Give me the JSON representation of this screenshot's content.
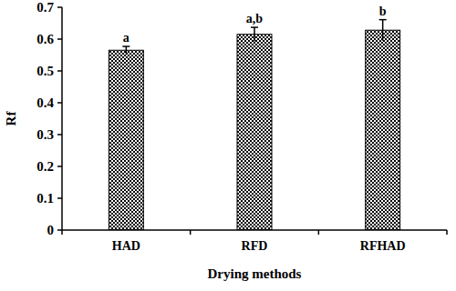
{
  "chart_data": {
    "type": "bar",
    "x_label": "Drying methods",
    "y_label": "Rf",
    "categories": [
      "HAD",
      "RFD",
      "RFHAD"
    ],
    "values": [
      0.565,
      0.615,
      0.628
    ],
    "errors": [
      0.012,
      0.022,
      0.033
    ],
    "annotations": [
      "a",
      "a,b",
      "b"
    ],
    "color": "#000000",
    "ylim": [
      0,
      0.7
    ],
    "yticks": [
      0,
      0.1,
      0.2,
      0.3,
      0.4,
      0.5,
      0.6,
      0.7
    ],
    "grid": false
  }
}
